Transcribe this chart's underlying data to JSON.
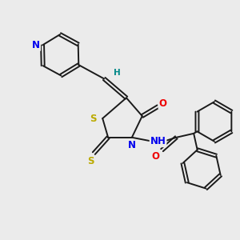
{
  "background_color": "#ebebeb",
  "bond_color": "#1a1a1a",
  "bond_width": 1.4,
  "atom_colors": {
    "N": "#0000ee",
    "O": "#ee0000",
    "S": "#bbaa00",
    "H": "#008888",
    "C": "#1a1a1a"
  },
  "font_size": 8.5
}
